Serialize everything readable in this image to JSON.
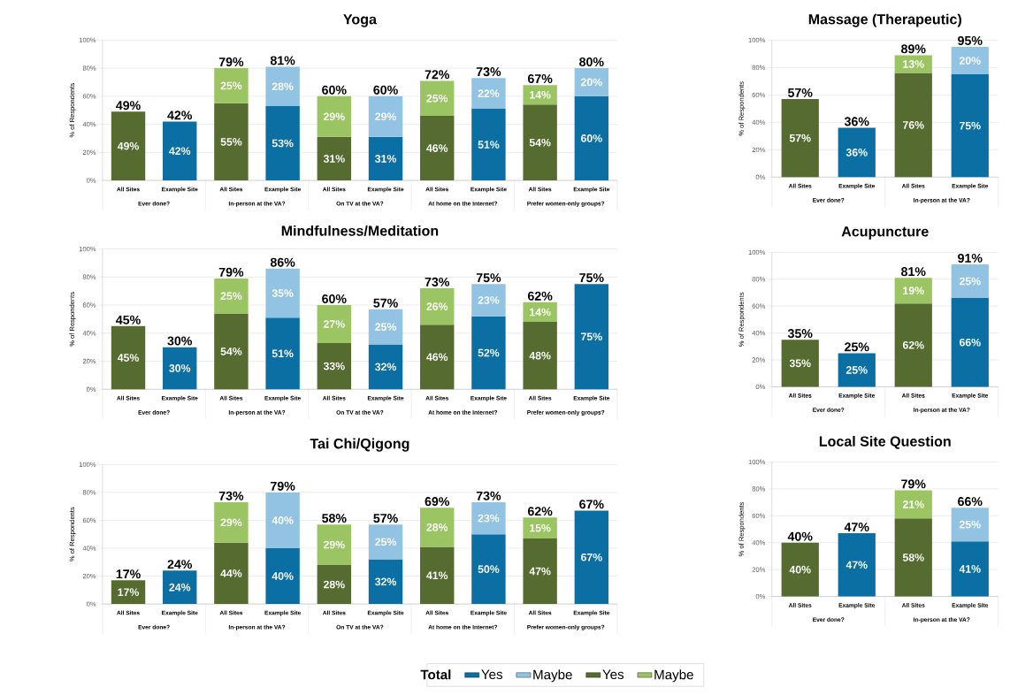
{
  "chart_data": [
    {
      "type": "bar",
      "stacked": true,
      "title": "Yoga",
      "ylabel": "% of Respondents",
      "legend_title": "Total",
      "legend": "bottom",
      "grid": "y",
      "categories": [
        "All Sites",
        "Example Site",
        "All Sites",
        "Example Site",
        "All Sites",
        "Example Site",
        "All Sites",
        "Example Site",
        "All Sites",
        "Example Site"
      ],
      "annotations": [
        "Ever done?",
        "In-person at the VA?",
        "On TV at the VA?",
        "At home on the Internet?",
        "Prefer women-only groups?"
      ],
      "ylim": [
        0,
        100
      ],
      "yticks": [
        {
          "value": 0,
          "label": "0%"
        },
        {
          "value": 20,
          "label": "20%"
        },
        {
          "value": 40,
          "label": "40%"
        },
        {
          "value": 60,
          "label": "60%"
        },
        {
          "value": 80,
          "label": "80%"
        },
        {
          "value": 100,
          "label": "100%"
        }
      ],
      "series": [
        {
          "name": "Yes",
          "color": "#0b6fa4",
          "values": [
            null,
            42,
            null,
            53,
            null,
            31,
            null,
            51,
            null,
            60
          ],
          "value_labels": [
            null,
            "42%",
            null,
            "53%",
            null,
            "31%",
            null,
            "51%",
            null,
            "60%"
          ]
        },
        {
          "name": "Maybe",
          "color": "#93c3e3",
          "values": [
            null,
            null,
            null,
            28,
            null,
            29,
            null,
            22,
            null,
            20
          ],
          "value_labels": [
            null,
            null,
            null,
            "28%",
            null,
            "29%",
            null,
            "22%",
            null,
            "20%"
          ]
        },
        {
          "name": "Yes",
          "color": "#556b2f",
          "values": [
            49,
            null,
            55,
            null,
            31,
            null,
            46,
            null,
            54,
            null
          ],
          "value_labels": [
            "49%",
            null,
            "55%",
            null,
            "31%",
            null,
            "46%",
            null,
            "54%",
            null
          ]
        },
        {
          "name": "Maybe",
          "color": "#9bc462",
          "values": [
            null,
            null,
            25,
            null,
            29,
            null,
            25,
            null,
            14,
            null
          ],
          "value_labels": [
            null,
            null,
            "25%",
            null,
            "29%",
            null,
            "25%",
            null,
            "14%",
            null
          ]
        }
      ],
      "totals": [
        "49%",
        "42%",
        "79%",
        "81%",
        "60%",
        "60%",
        "72%",
        "73%",
        "67%",
        "80%"
      ]
    },
    {
      "type": "bar",
      "stacked": true,
      "title": "Massage (Therapeutic)",
      "ylabel": "% of Respondents",
      "grid": "y",
      "categories": [
        "All Sites",
        "Example Site",
        "All Sites",
        "Example Site"
      ],
      "annotations": [
        "Ever done?",
        "In-person at the VA?"
      ],
      "ylim": [
        0,
        100
      ],
      "yticks": [
        {
          "value": 0,
          "label": "0%"
        },
        {
          "value": 20,
          "label": "20%"
        },
        {
          "value": 40,
          "label": "40%"
        },
        {
          "value": 60,
          "label": "60%"
        },
        {
          "value": 80,
          "label": "80%"
        },
        {
          "value": 100,
          "label": "100%"
        }
      ],
      "series": [
        {
          "color": "#0b6fa4",
          "values": [
            null,
            36,
            null,
            75
          ],
          "value_labels": [
            null,
            "36%",
            null,
            "75%"
          ]
        },
        {
          "color": "#93c3e3",
          "values": [
            null,
            null,
            null,
            20
          ],
          "value_labels": [
            null,
            null,
            null,
            "20%"
          ]
        },
        {
          "color": "#556b2f",
          "values": [
            57,
            null,
            76,
            null
          ],
          "value_labels": [
            "57%",
            null,
            "76%",
            null
          ]
        },
        {
          "color": "#9bc462",
          "values": [
            null,
            null,
            13,
            null
          ],
          "value_labels": [
            null,
            null,
            "13%",
            null
          ]
        }
      ],
      "totals": [
        "57%",
        "36%",
        "89%",
        "95%"
      ]
    },
    {
      "type": "bar",
      "stacked": true,
      "title": "Mindfulness/Meditation",
      "ylabel": "% of Respondents",
      "grid": "y",
      "categories": [
        "All Sites",
        "Example Site",
        "All Sites",
        "Example Site",
        "All Sites",
        "Example Site",
        "All Sites",
        "Example Site",
        "All Sites",
        "Example Site"
      ],
      "annotations": [
        "Ever done?",
        "In-person at the VA?",
        "On TV at the VA?",
        "At home on the Internet?",
        "Prefer women-only groups?"
      ],
      "ylim": [
        0,
        100
      ],
      "yticks": [
        {
          "value": 0,
          "label": "0%"
        },
        {
          "value": 20,
          "label": "20%"
        },
        {
          "value": 40,
          "label": "40%"
        },
        {
          "value": 60,
          "label": "60%"
        },
        {
          "value": 80,
          "label": "80%"
        },
        {
          "value": 100,
          "label": "100%"
        }
      ],
      "series": [
        {
          "color": "#0b6fa4",
          "values": [
            null,
            30,
            null,
            51,
            null,
            32,
            null,
            52,
            null,
            75
          ],
          "value_labels": [
            null,
            "30%",
            null,
            "51%",
            null,
            "32%",
            null,
            "52%",
            null,
            "75%"
          ]
        },
        {
          "color": "#93c3e3",
          "values": [
            null,
            null,
            null,
            35,
            null,
            25,
            null,
            23,
            null,
            null
          ],
          "value_labels": [
            null,
            null,
            null,
            "35%",
            null,
            "25%",
            null,
            "23%",
            null,
            null
          ]
        },
        {
          "color": "#556b2f",
          "values": [
            45,
            null,
            54,
            null,
            33,
            null,
            46,
            null,
            48,
            null
          ],
          "value_labels": [
            "45%",
            null,
            "54%",
            null,
            "33%",
            null,
            "46%",
            null,
            "48%",
            null
          ]
        },
        {
          "color": "#9bc462",
          "values": [
            null,
            null,
            25,
            null,
            27,
            null,
            26,
            null,
            14,
            null
          ],
          "value_labels": [
            null,
            null,
            "25%",
            null,
            "27%",
            null,
            "26%",
            null,
            "14%",
            null
          ]
        }
      ],
      "totals": [
        "45%",
        "30%",
        "79%",
        "86%",
        "60%",
        "57%",
        "73%",
        "75%",
        "62%",
        "75%"
      ]
    },
    {
      "type": "bar",
      "stacked": true,
      "title": "Acupuncture",
      "ylabel": "% of Respondents",
      "grid": "y",
      "categories": [
        "All Sites",
        "Example Site",
        "All Sites",
        "Example Site"
      ],
      "annotations": [
        "Ever done?",
        "In-person at the VA?"
      ],
      "ylim": [
        0,
        100
      ],
      "yticks": [
        {
          "value": 0,
          "label": "0%"
        },
        {
          "value": 20,
          "label": "20%"
        },
        {
          "value": 40,
          "label": "40%"
        },
        {
          "value": 60,
          "label": "60%"
        },
        {
          "value": 80,
          "label": "80%"
        },
        {
          "value": 100,
          "label": "100%"
        }
      ],
      "series": [
        {
          "color": "#0b6fa4",
          "values": [
            null,
            25,
            null,
            66
          ],
          "value_labels": [
            null,
            "25%",
            null,
            "66%"
          ]
        },
        {
          "color": "#93c3e3",
          "values": [
            null,
            null,
            null,
            25
          ],
          "value_labels": [
            null,
            null,
            null,
            "25%"
          ]
        },
        {
          "color": "#556b2f",
          "values": [
            35,
            null,
            62,
            null
          ],
          "value_labels": [
            "35%",
            null,
            "62%",
            null
          ]
        },
        {
          "color": "#9bc462",
          "values": [
            null,
            null,
            19,
            null
          ],
          "value_labels": [
            null,
            null,
            "19%",
            null
          ]
        }
      ],
      "totals": [
        "35%",
        "25%",
        "81%",
        "91%"
      ]
    },
    {
      "type": "bar",
      "stacked": true,
      "title": "Tai Chi/Qigong",
      "ylabel": "% of Respondents",
      "grid": "y",
      "categories": [
        "All Sites",
        "Example Site",
        "All Sites",
        "Example Site",
        "All Sites",
        "Example Site",
        "All Sites",
        "Example Site",
        "All Sites",
        "Example Site"
      ],
      "annotations": [
        "Ever done?",
        "In-person at the VA?",
        "On TV at the VA?",
        "At home on the Internet?",
        "Prefer women-only groups?"
      ],
      "ylim": [
        0,
        100
      ],
      "yticks": [
        {
          "value": 0,
          "label": "0%"
        },
        {
          "value": 20,
          "label": "20%"
        },
        {
          "value": 40,
          "label": "40%"
        },
        {
          "value": 60,
          "label": "60%"
        },
        {
          "value": 80,
          "label": "80%"
        },
        {
          "value": 100,
          "label": "100%"
        }
      ],
      "series": [
        {
          "color": "#0b6fa4",
          "values": [
            null,
            24,
            null,
            40,
            null,
            32,
            null,
            50,
            null,
            67
          ],
          "value_labels": [
            null,
            "24%",
            null,
            "40%",
            null,
            "32%",
            null,
            "50%",
            null,
            "67%"
          ]
        },
        {
          "color": "#93c3e3",
          "values": [
            null,
            null,
            null,
            40,
            null,
            25,
            null,
            23,
            null,
            null
          ],
          "value_labels": [
            null,
            null,
            null,
            "40%",
            null,
            "25%",
            null,
            "23%",
            null,
            null
          ]
        },
        {
          "color": "#556b2f",
          "values": [
            17,
            null,
            44,
            null,
            28,
            null,
            41,
            null,
            47,
            null
          ],
          "value_labels": [
            "17%",
            null,
            "44%",
            null,
            "28%",
            null,
            "41%",
            null,
            "47%",
            null
          ]
        },
        {
          "color": "#9bc462",
          "values": [
            null,
            null,
            29,
            null,
            29,
            null,
            28,
            null,
            15,
            null
          ],
          "value_labels": [
            null,
            null,
            "29%",
            null,
            "29%",
            null,
            "28%",
            null,
            "15%",
            null
          ]
        }
      ],
      "totals": [
        "17%",
        "24%",
        "73%",
        "79%",
        "58%",
        "57%",
        "69%",
        "73%",
        "62%",
        "67%"
      ]
    },
    {
      "type": "bar",
      "stacked": true,
      "title": "Local Site Question",
      "ylabel": "% of Respondents",
      "grid": "y",
      "categories": [
        "All Sites",
        "Example Site",
        "All Sites",
        "Example Site"
      ],
      "annotations": [
        "Ever done?",
        "In-person at the VA?"
      ],
      "ylim": [
        0,
        100
      ],
      "yticks": [
        {
          "value": 0,
          "label": "0%"
        },
        {
          "value": 20,
          "label": "20%"
        },
        {
          "value": 40,
          "label": "40%"
        },
        {
          "value": 60,
          "label": "60%"
        },
        {
          "value": 80,
          "label": "80%"
        },
        {
          "value": 100,
          "label": "100%"
        }
      ],
      "series": [
        {
          "color": "#0b6fa4",
          "values": [
            null,
            47,
            null,
            41
          ],
          "value_labels": [
            null,
            "47%",
            null,
            "41%"
          ]
        },
        {
          "color": "#93c3e3",
          "values": [
            null,
            null,
            null,
            25
          ],
          "value_labels": [
            null,
            null,
            null,
            "25%"
          ]
        },
        {
          "color": "#556b2f",
          "values": [
            40,
            null,
            58,
            null
          ],
          "value_labels": [
            "40%",
            null,
            "58%",
            null
          ]
        },
        {
          "color": "#9bc462",
          "values": [
            null,
            null,
            21,
            null
          ],
          "value_labels": [
            null,
            null,
            "21%",
            null
          ]
        }
      ],
      "totals": [
        "40%",
        "47%",
        "79%",
        "66%"
      ]
    }
  ]
}
